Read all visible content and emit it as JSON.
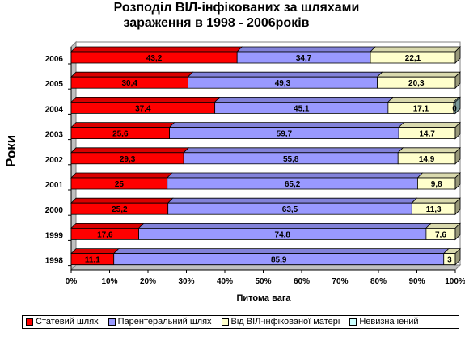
{
  "chart_data": {
    "type": "bar",
    "orientation": "horizontal",
    "stacked": "percent",
    "title": [
      "Розподіл ВІЛ-інфікованих  за шляхами",
      "зараження в 1998 - 2006років"
    ],
    "xlabel": "Питома вага",
    "ylabel": "Роки",
    "xlim": [
      0,
      100
    ],
    "x_ticks": [
      "0%",
      "10%",
      "20%",
      "30%",
      "40%",
      "50%",
      "60%",
      "70%",
      "80%",
      "90%",
      "100%"
    ],
    "categories": [
      "2006",
      "2005",
      "2004",
      "2003",
      "2002",
      "2001",
      "2000",
      "1999",
      "1998"
    ],
    "legend_position": "bottom",
    "grid": false,
    "series": [
      {
        "name": "Статевий шлях",
        "color": "#ff0000",
        "values": [
          43.2,
          30.4,
          37.4,
          25.6,
          29.3,
          25,
          25.2,
          17.6,
          11.1
        ],
        "labels": [
          "43,2",
          "30,4",
          "37,4",
          "25,6",
          "29,3",
          "25",
          "25,2",
          "17,6",
          "11,1"
        ]
      },
      {
        "name": "Парентеральний шлях",
        "color": "#9999ff",
        "values": [
          34.7,
          49.3,
          45.1,
          59.7,
          55.8,
          65.2,
          63.5,
          74.8,
          85.9
        ],
        "labels": [
          "34,7",
          "49,3",
          "45,1",
          "59,7",
          "55,8",
          "65,2",
          "63,5",
          "74,8",
          "85,9"
        ]
      },
      {
        "name": "Від ВІЛ-інфікованої матері",
        "color": "#ffffcc",
        "values": [
          22.1,
          20.3,
          17.1,
          14.7,
          14.9,
          9.8,
          11.3,
          7.6,
          3
        ],
        "labels": [
          "22,1",
          "20,3",
          "17,1",
          "14,7",
          "14,9",
          "9,8",
          "11,3",
          "7,6",
          "3"
        ]
      },
      {
        "name": "Невизначений",
        "color": "#ccffff",
        "values": [
          0,
          0,
          0.4,
          0,
          0,
          0,
          0,
          0,
          0
        ],
        "labels": [
          "",
          "",
          "0",
          "",
          "",
          "",
          "",
          "",
          ""
        ]
      }
    ]
  }
}
